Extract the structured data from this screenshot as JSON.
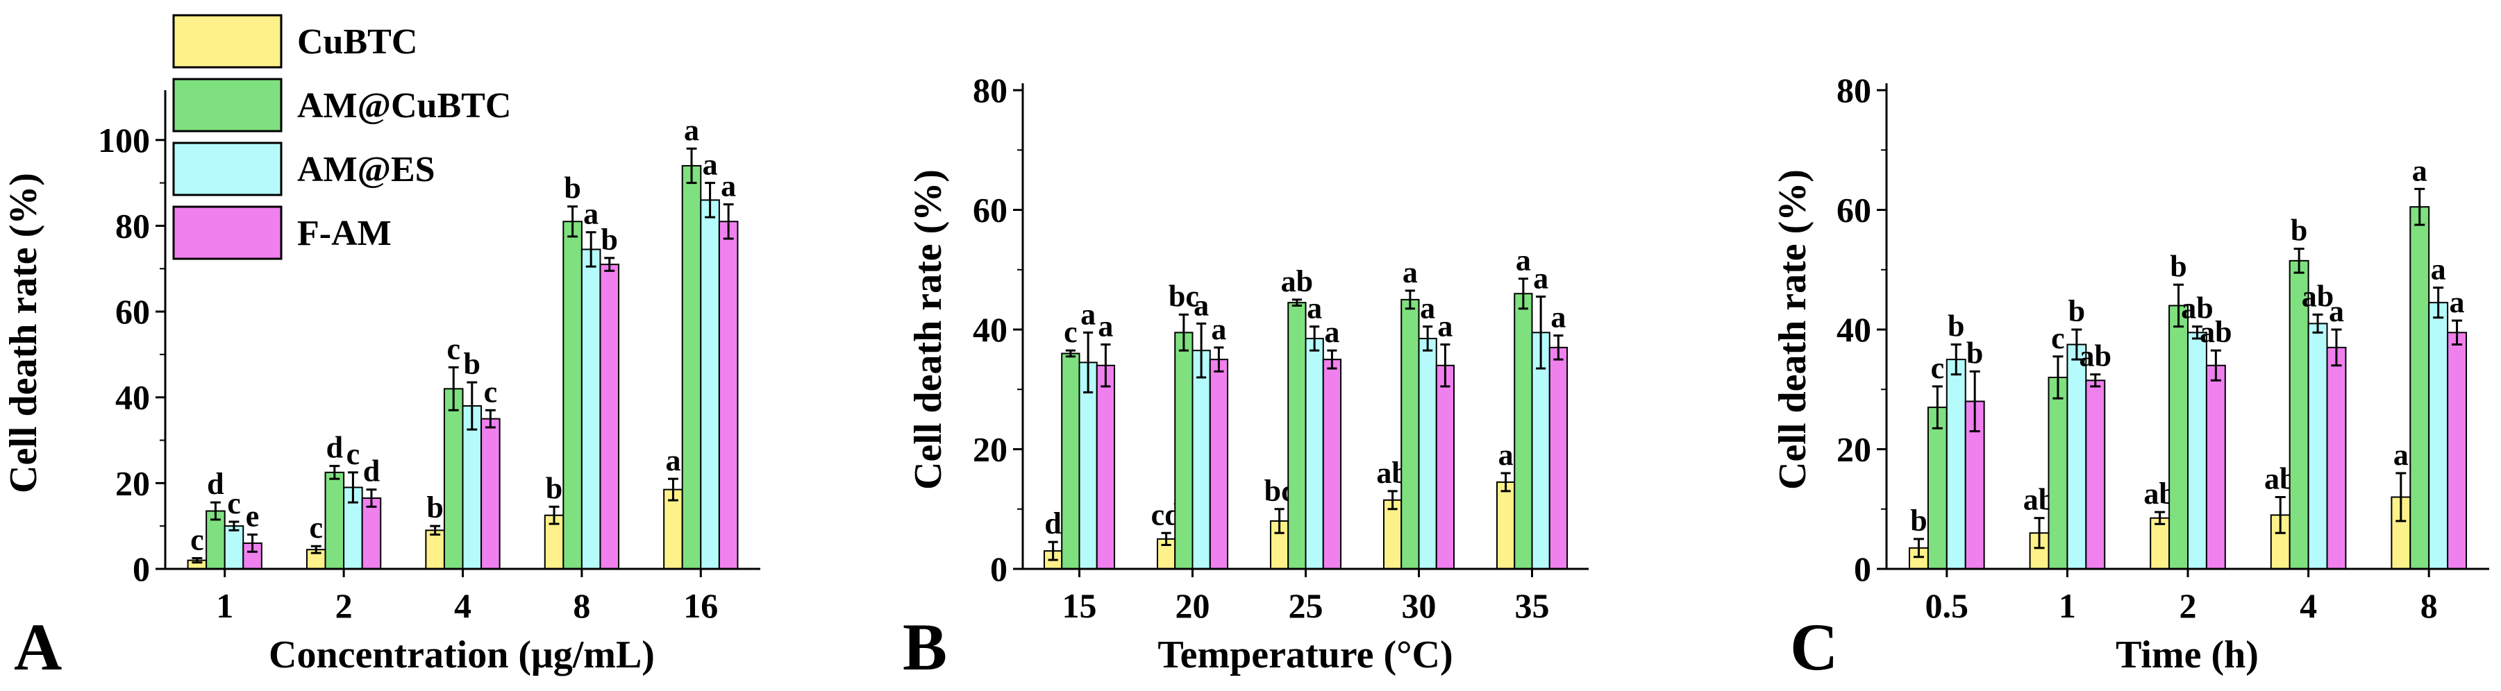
{
  "legend": {
    "items": [
      {
        "label": "CuBTC",
        "color": "#fff18a"
      },
      {
        "label": "AM@CuBTC",
        "color": "#7fe07f"
      },
      {
        "label": "AM@ES",
        "color": "#b6fbfb"
      },
      {
        "label": "F-AM",
        "color": "#ef80ee"
      }
    ]
  },
  "chart_data": [
    {
      "type": "bar",
      "panel_label": "A",
      "xlabel": "Concentration (μg/mL)",
      "ylabel": "Cell death rate (%)",
      "ylim": [
        0,
        110
      ],
      "yticks": [
        0,
        20,
        40,
        60,
        80,
        100
      ],
      "categories": [
        "1",
        "2",
        "4",
        "8",
        "16"
      ],
      "series": [
        {
          "name": "CuBTC",
          "values": [
            2,
            4.5,
            9,
            12.5,
            18.5
          ],
          "errors": [
            0.5,
            0.8,
            1,
            2,
            2.5
          ],
          "letters": [
            "c",
            "c",
            "b",
            "b",
            "a"
          ]
        },
        {
          "name": "AM@CuBTC",
          "values": [
            13.5,
            22.5,
            42,
            81,
            94
          ],
          "errors": [
            2,
            1.5,
            5,
            3.5,
            4
          ],
          "letters": [
            "d",
            "d",
            "c",
            "b",
            "a"
          ]
        },
        {
          "name": "AM@ES",
          "values": [
            10,
            19,
            38,
            74.5,
            86
          ],
          "errors": [
            1,
            3.5,
            5.5,
            4,
            4
          ],
          "letters": [
            "c",
            "c",
            "b",
            "a",
            "a"
          ]
        },
        {
          "name": "F-AM",
          "values": [
            6,
            16.5,
            35,
            71,
            81
          ],
          "errors": [
            2,
            2,
            2,
            1.5,
            4
          ],
          "letters": [
            "e",
            "d",
            "c",
            "b",
            "a"
          ]
        }
      ]
    },
    {
      "type": "bar",
      "panel_label": "B",
      "xlabel": "Temperature (°C)",
      "ylabel": "Cell death rate (%)",
      "ylim": [
        0,
        80
      ],
      "yticks": [
        0,
        20,
        40,
        60,
        80
      ],
      "categories": [
        "15",
        "20",
        "25",
        "30",
        "35"
      ],
      "series": [
        {
          "name": "CuBTC",
          "values": [
            3,
            5,
            8,
            11.5,
            14.5
          ],
          "errors": [
            1.5,
            1,
            2,
            1.5,
            1.5
          ],
          "letters": [
            "d",
            "cd",
            "bc",
            "ab",
            "a"
          ]
        },
        {
          "name": "AM@CuBTC",
          "values": [
            36,
            39.5,
            44.5,
            45,
            46
          ],
          "errors": [
            0.5,
            3,
            0.5,
            1.5,
            2.5
          ],
          "letters": [
            "c",
            "bc",
            "ab",
            "a",
            "a"
          ]
        },
        {
          "name": "AM@ES",
          "values": [
            34.5,
            36.5,
            38.5,
            38.5,
            39.5
          ],
          "errors": [
            5,
            4.5,
            2,
            2,
            6
          ],
          "letters": [
            "a",
            "a",
            "a",
            "a",
            "a"
          ]
        },
        {
          "name": "F-AM",
          "values": [
            34,
            35,
            35,
            34,
            37
          ],
          "errors": [
            3.5,
            2,
            1.5,
            3.5,
            2
          ],
          "letters": [
            "a",
            "a",
            "a",
            "a",
            "a"
          ]
        }
      ]
    },
    {
      "type": "bar",
      "panel_label": "C",
      "xlabel": "Time (h)",
      "ylabel": "Cell death rate (%)",
      "ylim": [
        0,
        80
      ],
      "yticks": [
        0,
        20,
        40,
        60,
        80
      ],
      "categories": [
        "0.5",
        "1",
        "2",
        "4",
        "8"
      ],
      "series": [
        {
          "name": "CuBTC",
          "values": [
            3.5,
            6,
            8.5,
            9,
            12
          ],
          "errors": [
            1.5,
            2.5,
            1,
            3,
            4
          ],
          "letters": [
            "b",
            "ab",
            "ab",
            "ab",
            "a"
          ]
        },
        {
          "name": "AM@CuBTC",
          "values": [
            27,
            32,
            44,
            51.5,
            60.5
          ],
          "errors": [
            3.5,
            3.5,
            3.5,
            2,
            3
          ],
          "letters": [
            "c",
            "c",
            "b",
            "b",
            "a"
          ]
        },
        {
          "name": "AM@ES",
          "values": [
            35,
            37.5,
            39.5,
            41,
            44.5
          ],
          "errors": [
            2.5,
            2.5,
            1,
            1.5,
            2.5
          ],
          "letters": [
            "b",
            "b",
            "ab",
            "ab",
            "a"
          ]
        },
        {
          "name": "F-AM",
          "values": [
            28,
            31.5,
            34,
            37,
            39.5
          ],
          "errors": [
            5,
            1,
            2.5,
            3,
            2
          ],
          "letters": [
            "b",
            "ab",
            "ab",
            "a",
            "a"
          ]
        }
      ]
    }
  ]
}
